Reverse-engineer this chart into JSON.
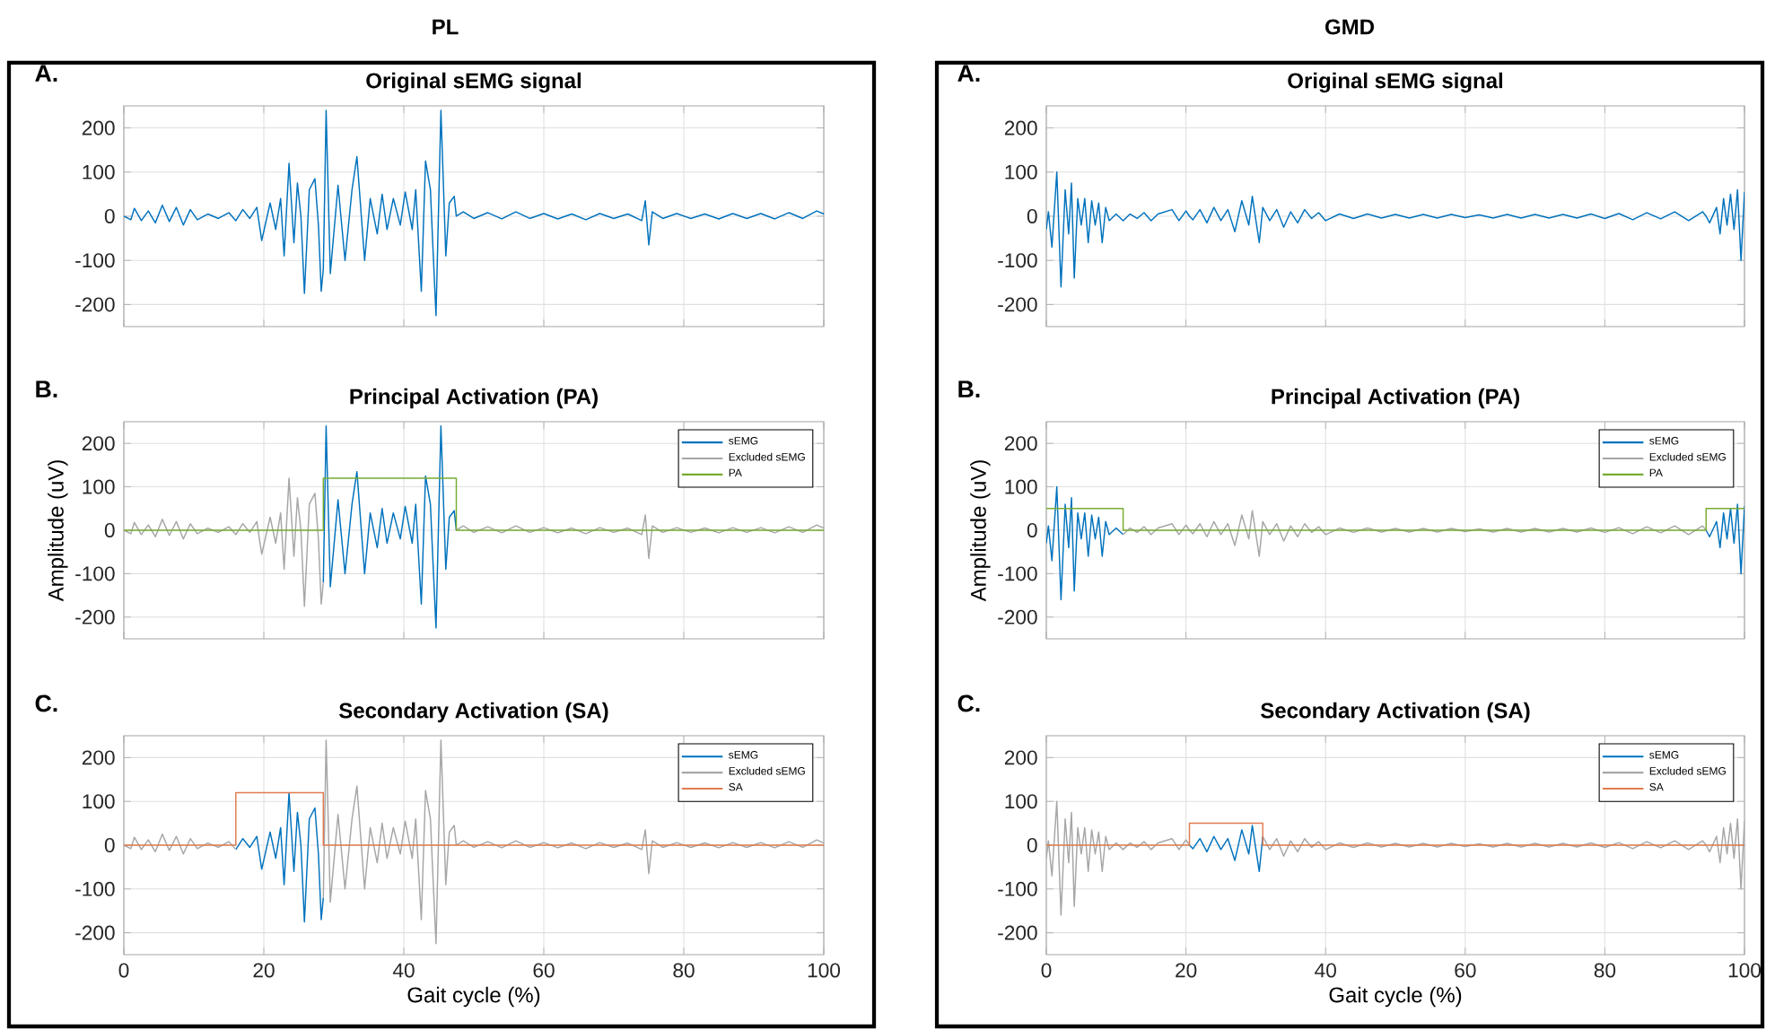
{
  "chart_data": [
    {
      "type": "line",
      "title": "Original sEMG signal",
      "annotations": [
        "PL",
        "A."
      ],
      "xlim": [
        0,
        100
      ],
      "ylim": [
        -250,
        250
      ],
      "xticks": [
        0,
        20,
        40,
        60,
        80,
        100
      ],
      "yticks": [
        -200,
        -100,
        0,
        100,
        200
      ],
      "grid": true,
      "tick_labels": "y",
      "series": [
        {
          "color": "#0072bd",
          "x": [
            0,
            1,
            1.5,
            2.5,
            3.5,
            4.5,
            5.5,
            6.5,
            7.5,
            8.5,
            9.5,
            10.5,
            12,
            13.5,
            15,
            16,
            17,
            18,
            19,
            19.7,
            20.9,
            21.7,
            22.4,
            22.9,
            23.6,
            24.3,
            24.8,
            25.3,
            25.8,
            26.5,
            27.3,
            27.8,
            28.2,
            28.5,
            28.9,
            29.5,
            30.6,
            31.6,
            32.6,
            33.3,
            34.4,
            35.2,
            36.2,
            36.9,
            37.6,
            38.5,
            39.5,
            40.2,
            41.2,
            41.7,
            42.5,
            43.1,
            43.8,
            44.1,
            44.6,
            45.3,
            46,
            46.5,
            47.2,
            47.5,
            48.5,
            50,
            52,
            54,
            56,
            58,
            60,
            62,
            64,
            66,
            68,
            70,
            72,
            74,
            74.5,
            75,
            75.5,
            77,
            79,
            81,
            83,
            85,
            87,
            89,
            91,
            93,
            95,
            97,
            99,
            100
          ],
          "values": [
            0,
            -8,
            18,
            -10,
            12,
            -15,
            25,
            -12,
            20,
            -20,
            15,
            -8,
            5,
            -5,
            8,
            -10,
            15,
            -5,
            20,
            -55,
            30,
            -30,
            40,
            -90,
            120,
            -60,
            75,
            0,
            -175,
            60,
            85,
            -20,
            -170,
            -120,
            240,
            -130,
            70,
            -100,
            60,
            135,
            -100,
            40,
            -40,
            50,
            -30,
            40,
            -20,
            55,
            -30,
            60,
            -170,
            125,
            60,
            -50,
            -225,
            240,
            -90,
            30,
            45,
            0,
            10,
            -5,
            8,
            -6,
            10,
            -5,
            6,
            -6,
            5,
            -8,
            6,
            -5,
            5,
            -10,
            35,
            -65,
            10,
            -5,
            6,
            -5,
            5,
            -6,
            6,
            -5,
            6,
            -6,
            8,
            -5,
            12,
            5
          ]
        }
      ]
    },
    {
      "type": "line",
      "title": "Principal Activation (PA)",
      "ylabel": "Amplitude (uV)",
      "annotations": [
        "B."
      ],
      "xlim": [
        0,
        100
      ],
      "ylim": [
        -250,
        250
      ],
      "xticks": [
        0,
        20,
        40,
        60,
        80,
        100
      ],
      "yticks": [
        -200,
        -100,
        0,
        100,
        200
      ],
      "grid": true,
      "tick_labels": "y",
      "legend": "top right",
      "series": [
        {
          "name": "sEMG",
          "color": "#0072bd",
          "x": [
            28.5,
            28.9,
            29.5,
            30.6,
            31.6,
            32.6,
            33.3,
            34.4,
            35.2,
            36.2,
            36.9,
            37.6,
            38.5,
            39.5,
            40.2,
            41.2,
            41.7,
            42.5,
            43.1,
            43.8,
            44.1,
            44.6,
            45.3,
            46,
            46.5,
            47.2,
            47.5
          ],
          "values": [
            -120,
            240,
            -130,
            70,
            -100,
            60,
            135,
            -100,
            40,
            -40,
            50,
            -30,
            40,
            -20,
            55,
            -30,
            60,
            -170,
            125,
            60,
            -50,
            -225,
            240,
            -90,
            30,
            45,
            0
          ]
        },
        {
          "name": "Excluded sEMG",
          "color": "#a6a6a6",
          "x": [
            0,
            1,
            1.5,
            2.5,
            3.5,
            4.5,
            5.5,
            6.5,
            7.5,
            8.5,
            9.5,
            10.5,
            12,
            13.5,
            15,
            16,
            17,
            18,
            19,
            19.7,
            20.9,
            21.7,
            22.4,
            22.9,
            23.6,
            24.3,
            24.8,
            25.3,
            25.8,
            26.5,
            27.3,
            27.8,
            28.2,
            28.5,
            38,
            47.5,
            48.5,
            50,
            52,
            54,
            56,
            58,
            60,
            62,
            64,
            66,
            68,
            70,
            72,
            74,
            74.5,
            75,
            75.5,
            77,
            79,
            81,
            83,
            85,
            87,
            89,
            91,
            93,
            95,
            97,
            99,
            100
          ],
          "values": [
            0,
            -8,
            18,
            -10,
            12,
            -15,
            25,
            -12,
            20,
            -20,
            15,
            -8,
            5,
            -5,
            8,
            -10,
            15,
            -5,
            20,
            -55,
            30,
            -30,
            40,
            -90,
            120,
            -60,
            75,
            0,
            -175,
            60,
            85,
            -20,
            -170,
            -120,
            null,
            0,
            10,
            -5,
            8,
            -6,
            10,
            -5,
            6,
            -6,
            5,
            -8,
            6,
            -5,
            5,
            -10,
            35,
            -65,
            10,
            -5,
            6,
            -5,
            5,
            -6,
            6,
            -5,
            6,
            -6,
            8,
            -5,
            12,
            5
          ]
        },
        {
          "name": "PA",
          "color": "#77ac30",
          "x": [
            0,
            28.5,
            28.5,
            47.5,
            47.5,
            100
          ],
          "values": [
            0,
            0,
            120,
            120,
            0,
            0
          ]
        }
      ]
    },
    {
      "type": "line",
      "title": "Secondary Activation (SA)",
      "xlabel": "Gait cycle (%)",
      "annotations": [
        "C."
      ],
      "xlim": [
        0,
        100
      ],
      "ylim": [
        -250,
        250
      ],
      "xticks": [
        0,
        20,
        40,
        60,
        80,
        100
      ],
      "yticks": [
        -200,
        -100,
        0,
        100,
        200
      ],
      "grid": true,
      "legend": "top right",
      "series": [
        {
          "name": "sEMG",
          "color": "#0072bd",
          "x": [
            16,
            17,
            18,
            19,
            19.7,
            20.9,
            21.7,
            22.4,
            22.9,
            23.6,
            24.3,
            24.8,
            25.3,
            25.8,
            26.5,
            27.3,
            27.8,
            28.2,
            28.5
          ],
          "values": [
            -10,
            15,
            -5,
            20,
            -55,
            30,
            -30,
            40,
            -90,
            120,
            -60,
            75,
            0,
            -175,
            60,
            85,
            -20,
            -170,
            -120
          ]
        },
        {
          "name": "Excluded sEMG",
          "color": "#a6a6a6",
          "x": [
            0,
            1,
            1.5,
            2.5,
            3.5,
            4.5,
            5.5,
            6.5,
            7.5,
            8.5,
            9.5,
            10.5,
            12,
            13.5,
            15,
            16,
            22,
            28.5,
            28.9,
            29.5,
            30.6,
            31.6,
            32.6,
            33.3,
            34.4,
            35.2,
            36.2,
            36.9,
            37.6,
            38.5,
            39.5,
            40.2,
            41.2,
            41.7,
            42.5,
            43.1,
            43.8,
            44.1,
            44.6,
            45.3,
            46,
            46.5,
            47.2,
            47.5,
            48.5,
            50,
            52,
            54,
            56,
            58,
            60,
            62,
            64,
            66,
            68,
            70,
            72,
            74,
            74.5,
            75,
            75.5,
            77,
            79,
            81,
            83,
            85,
            87,
            89,
            91,
            93,
            95,
            97,
            99,
            100
          ],
          "values": [
            0,
            -8,
            18,
            -10,
            12,
            -15,
            25,
            -12,
            20,
            -20,
            15,
            -8,
            5,
            -5,
            8,
            -10,
            null,
            -120,
            240,
            -130,
            70,
            -100,
            60,
            135,
            -100,
            40,
            -40,
            50,
            -30,
            40,
            -20,
            55,
            -30,
            60,
            -170,
            125,
            60,
            -50,
            -225,
            240,
            -90,
            30,
            45,
            0,
            10,
            -5,
            8,
            -6,
            10,
            -5,
            6,
            -6,
            5,
            -8,
            6,
            -5,
            5,
            -10,
            35,
            -65,
            10,
            -5,
            6,
            -5,
            5,
            -6,
            6,
            -5,
            6,
            -6,
            8,
            -5,
            12,
            5
          ]
        },
        {
          "name": "SA",
          "color": "#e07b4f",
          "x": [
            0,
            16,
            16,
            28.5,
            28.5,
            100
          ],
          "values": [
            0,
            0,
            120,
            120,
            0,
            0
          ]
        }
      ]
    },
    {
      "type": "line",
      "title": "Original sEMG signal",
      "annotations": [
        "GMD",
        "A."
      ],
      "xlim": [
        0,
        100
      ],
      "ylim": [
        -250,
        250
      ],
      "xticks": [
        0,
        20,
        40,
        60,
        80,
        100
      ],
      "yticks": [
        -200,
        -100,
        0,
        100,
        200
      ],
      "grid": true,
      "tick_labels": "y",
      "series": [
        {
          "color": "#0072bd",
          "x": [
            0,
            0.3,
            0.8,
            1.5,
            2.1,
            2.7,
            3.2,
            3.6,
            4,
            4.5,
            5,
            5.5,
            6,
            6.5,
            7,
            7.5,
            8,
            8.5,
            9,
            10,
            11,
            12,
            13,
            14,
            15,
            16,
            18,
            19,
            20,
            20.5,
            21,
            22,
            23,
            24,
            25,
            26,
            27,
            28,
            29,
            29.5,
            30.5,
            31,
            32,
            33,
            34,
            35,
            36,
            37,
            38,
            39,
            40,
            42,
            44,
            46,
            48,
            50,
            52,
            54,
            56,
            58,
            60,
            62,
            64,
            66,
            68,
            70,
            72,
            74,
            76,
            78,
            80,
            82,
            84,
            86,
            88,
            90,
            92,
            94,
            94.5,
            95,
            96,
            96.5,
            97,
            97.5,
            98,
            98.5,
            99,
            99.5,
            100
          ],
          "values": [
            -30,
            10,
            -70,
            100,
            -160,
            60,
            -40,
            75,
            -140,
            40,
            -20,
            40,
            -60,
            35,
            -20,
            30,
            -60,
            20,
            -10,
            5,
            -10,
            5,
            -5,
            8,
            -10,
            5,
            15,
            -10,
            12,
            0,
            -8,
            15,
            -15,
            20,
            -10,
            15,
            -35,
            35,
            -20,
            45,
            -60,
            20,
            -10,
            15,
            -25,
            10,
            -15,
            15,
            -5,
            8,
            -10,
            5,
            -5,
            5,
            -4,
            4,
            -4,
            4,
            -4,
            4,
            -3,
            3,
            -4,
            4,
            -4,
            4,
            -4,
            4,
            -4,
            5,
            -5,
            6,
            -8,
            8,
            -6,
            10,
            -10,
            10,
            0,
            -15,
            20,
            -40,
            40,
            -20,
            50,
            -30,
            60,
            -100,
            55
          ]
        }
      ]
    },
    {
      "type": "line",
      "title": "Principal Activation (PA)",
      "ylabel": "Amplitude (uV)",
      "annotations": [
        "B."
      ],
      "xlim": [
        0,
        100
      ],
      "ylim": [
        -250,
        250
      ],
      "xticks": [
        0,
        20,
        40,
        60,
        80,
        100
      ],
      "yticks": [
        -200,
        -100,
        0,
        100,
        200
      ],
      "grid": true,
      "tick_labels": "y",
      "legend": "top right",
      "series": [
        {
          "name": "sEMG",
          "color": "#0072bd",
          "x": [
            0,
            0.3,
            0.8,
            1.5,
            2.1,
            2.7,
            3.2,
            3.6,
            4,
            4.5,
            5,
            5.5,
            6,
            6.5,
            7,
            7.5,
            8,
            8.5,
            9,
            10,
            11,
            50,
            94.5,
            95,
            96,
            96.5,
            97,
            97.5,
            98,
            98.5,
            99,
            99.5,
            100
          ],
          "values": [
            -30,
            10,
            -70,
            100,
            -160,
            60,
            -40,
            75,
            -140,
            40,
            -20,
            40,
            -60,
            35,
            -20,
            30,
            -60,
            20,
            -10,
            5,
            -10,
            null,
            0,
            -15,
            20,
            -40,
            40,
            -20,
            50,
            -30,
            60,
            -100,
            55
          ]
        },
        {
          "name": "Excluded sEMG",
          "color": "#a6a6a6",
          "x": [
            11,
            12,
            13,
            14,
            15,
            16,
            18,
            19,
            20,
            20.5,
            21,
            22,
            23,
            24,
            25,
            26,
            27,
            28,
            29,
            29.5,
            30.5,
            31,
            32,
            33,
            34,
            35,
            36,
            37,
            38,
            39,
            40,
            42,
            44,
            46,
            48,
            50,
            52,
            54,
            56,
            58,
            60,
            62,
            64,
            66,
            68,
            70,
            72,
            74,
            76,
            78,
            80,
            82,
            84,
            86,
            88,
            90,
            92,
            94,
            94.5
          ],
          "values": [
            -10,
            5,
            -5,
            8,
            -10,
            5,
            15,
            -10,
            12,
            0,
            -8,
            15,
            -15,
            20,
            -10,
            15,
            -35,
            35,
            -20,
            45,
            -60,
            20,
            -10,
            15,
            -25,
            10,
            -15,
            15,
            -5,
            8,
            -10,
            5,
            -5,
            5,
            -4,
            4,
            -4,
            4,
            -4,
            4,
            -3,
            3,
            -4,
            4,
            -4,
            4,
            -4,
            4,
            -4,
            5,
            -5,
            6,
            -8,
            8,
            -6,
            10,
            -10,
            10,
            0
          ]
        },
        {
          "name": "PA",
          "color": "#77ac30",
          "x": [
            0,
            11,
            11,
            94.5,
            94.5,
            100
          ],
          "values": [
            50,
            50,
            0,
            0,
            50,
            50
          ]
        }
      ]
    },
    {
      "type": "line",
      "title": "Secondary Activation (SA)",
      "xlabel": "Gait cycle (%)",
      "annotations": [
        "C."
      ],
      "xlim": [
        0,
        100
      ],
      "ylim": [
        -250,
        250
      ],
      "xticks": [
        0,
        20,
        40,
        60,
        80,
        100
      ],
      "yticks": [
        -200,
        -100,
        0,
        100,
        200
      ],
      "grid": true,
      "legend": "top right",
      "series": [
        {
          "name": "sEMG",
          "color": "#0072bd",
          "x": [
            20.5,
            21,
            22,
            23,
            24,
            25,
            26,
            27,
            28,
            29,
            29.5,
            30.5,
            31
          ],
          "values": [
            0,
            -8,
            15,
            -15,
            20,
            -10,
            15,
            -35,
            35,
            -20,
            45,
            -60,
            20
          ]
        },
        {
          "name": "Excluded sEMG",
          "color": "#a6a6a6",
          "x": [
            0,
            0.3,
            0.8,
            1.5,
            2.1,
            2.7,
            3.2,
            3.6,
            4,
            4.5,
            5,
            5.5,
            6,
            6.5,
            7,
            7.5,
            8,
            8.5,
            9,
            10,
            11,
            12,
            13,
            14,
            15,
            16,
            18,
            19,
            20,
            20.5,
            26,
            31,
            32,
            33,
            34,
            35,
            36,
            37,
            38,
            39,
            40,
            42,
            44,
            46,
            48,
            50,
            52,
            54,
            56,
            58,
            60,
            62,
            64,
            66,
            68,
            70,
            72,
            74,
            76,
            78,
            80,
            82,
            84,
            86,
            88,
            90,
            92,
            94,
            94.5,
            95,
            96,
            96.5,
            97,
            97.5,
            98,
            98.5,
            99,
            99.5,
            100
          ],
          "values": [
            -30,
            10,
            -70,
            100,
            -160,
            60,
            -40,
            75,
            -140,
            40,
            -20,
            40,
            -60,
            35,
            -20,
            30,
            -60,
            20,
            -10,
            5,
            -10,
            5,
            -5,
            8,
            -10,
            5,
            15,
            -10,
            12,
            0,
            null,
            20,
            -10,
            15,
            -25,
            10,
            -15,
            15,
            -5,
            8,
            -10,
            5,
            -5,
            5,
            -4,
            4,
            -4,
            4,
            -4,
            4,
            -3,
            3,
            -4,
            4,
            -4,
            4,
            -4,
            4,
            -4,
            5,
            -5,
            6,
            -8,
            8,
            -6,
            10,
            -10,
            10,
            0,
            -15,
            20,
            -40,
            40,
            -20,
            50,
            -30,
            60,
            -100,
            55
          ]
        },
        {
          "name": "SA",
          "color": "#e07b4f",
          "x": [
            0,
            20.5,
            20.5,
            31,
            31,
            100
          ],
          "values": [
            0,
            0,
            50,
            50,
            0,
            0
          ]
        }
      ]
    }
  ]
}
